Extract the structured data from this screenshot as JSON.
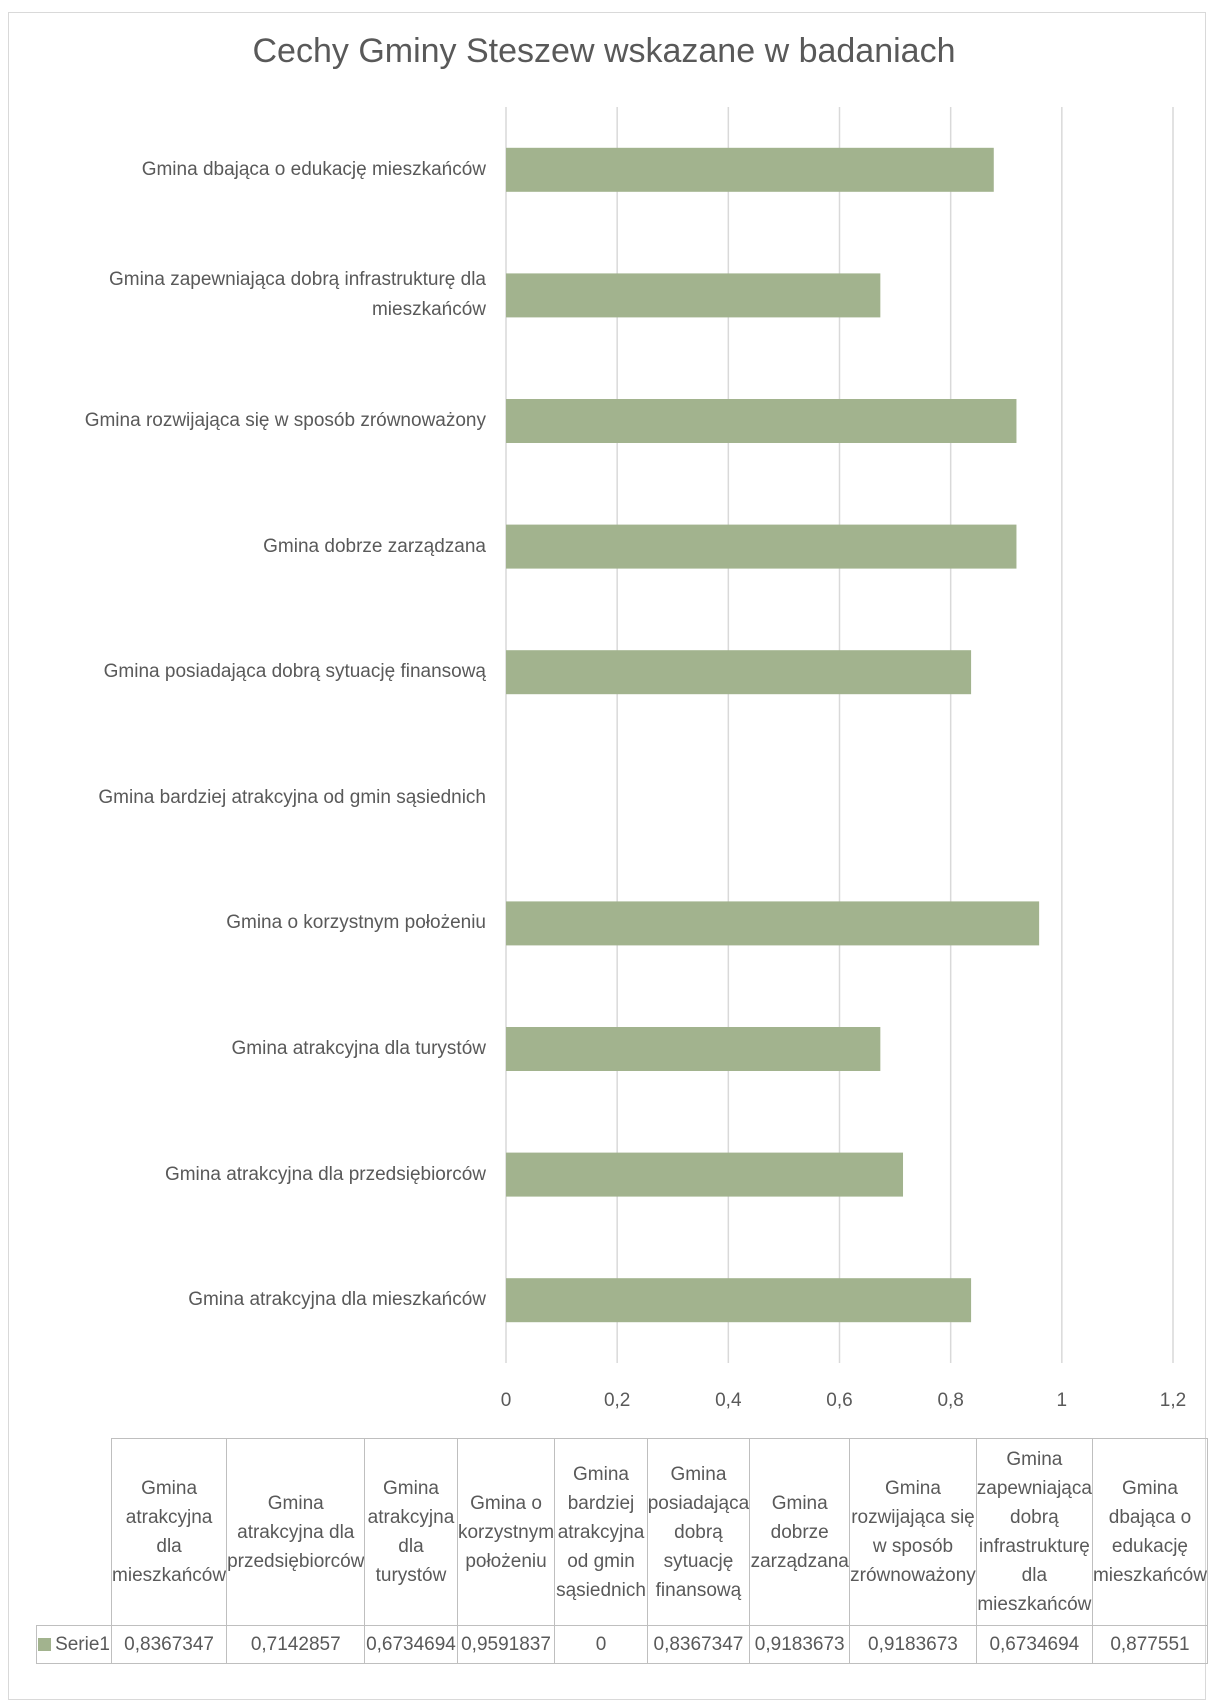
{
  "chart_data": {
    "type": "bar",
    "orientation": "horizontal",
    "title": "Cechy Gminy Steszew wskazane w badaniach",
    "categories": [
      "Gmina atrakcyjna dla mieszkańców",
      "Gmina atrakcyjna dla przedsiębiorców",
      "Gmina atrakcyjna dla turystów",
      "Gmina o korzystnym położeniu",
      "Gmina bardziej atrakcyjna od gmin sąsiednich",
      "Gmina posiadająca dobrą sytuację finansową",
      "Gmina dobrze zarządzana",
      "Gmina rozwijająca się w sposób zrównoważony",
      "Gmina zapewniająca dobrą infrastrukturę dla mieszkańców",
      "Gmina dbająca o edukację mieszkańców"
    ],
    "axis_categories": [
      "Gmina atrakcyjna dla mieszkańców",
      "Gmina atrakcyjna dla przedsiębiorców",
      "Gmina atrakcyjna dla turystów",
      "Gmina o korzystnym położeniu ",
      "Gmina bardziej atrakcyjna od gmin sąsiednich",
      "Gmina posiadająca dobrą sytuację finansową",
      "Gmina dobrze zarządzana",
      "Gmina rozwijająca się w sposób zrównoważony",
      "Gmina zapewniająca dobrą infrastrukturę dla mieszkańców",
      "Gmina dbająca o edukację mieszkańców"
    ],
    "series": [
      {
        "name": "Serie1",
        "color": "#a2b38e",
        "values": [
          0.8367347,
          0.7142857,
          0.6734694,
          0.9591837,
          0,
          0.8367347,
          0.9183673,
          0.9183673,
          0.6734694,
          0.877551
        ],
        "value_labels": [
          "0,8367347",
          "0,7142857",
          "0,6734694",
          "0,9591837",
          "0",
          "0,8367347",
          "0,9183673",
          "0,9183673",
          "0,6734694",
          "0,877551"
        ]
      }
    ],
    "xlim": [
      0,
      1.2
    ],
    "x_ticks": [
      0,
      0.2,
      0.4,
      0.6,
      0.8,
      1,
      1.2
    ],
    "x_tick_labels": [
      "0",
      "0,2",
      "0,4",
      "0,6",
      "0,8",
      "1",
      "1,2"
    ],
    "xlabel": "",
    "ylabel": "",
    "grid": true,
    "legend": "data-table",
    "data_table": true
  }
}
